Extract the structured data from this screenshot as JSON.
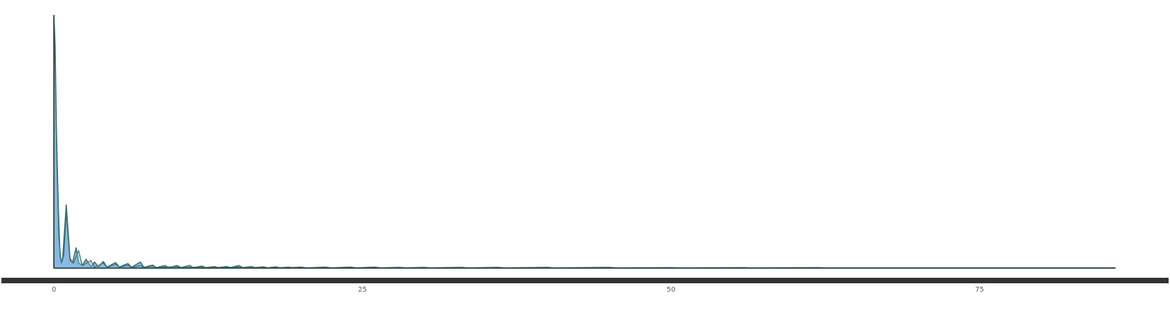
{
  "chart_data": {
    "type": "area",
    "title": "",
    "xlabel": "",
    "ylabel": "",
    "xlim": [
      0,
      90
    ],
    "ylim": [
      0,
      1
    ],
    "grid": false,
    "x_ticks": [
      0,
      25,
      50,
      75
    ],
    "x_tick_labels": [
      "0",
      "25",
      "50",
      "75"
    ],
    "colors": {
      "fill": "#7fb2de",
      "line": "#3a6e6a",
      "axis": "#2f3d3d",
      "scrollbar": "#333333"
    },
    "series": [
      {
        "x": [
          0,
          0.1,
          0.2,
          0.35,
          0.5,
          0.7,
          1.0,
          1.3,
          1.5,
          1.8,
          2.0,
          2.3,
          2.6,
          3.0,
          3.3,
          3.6,
          4.0,
          4.3,
          5.0,
          5.3,
          6.0,
          6.3,
          7.0,
          7.3,
          8.0,
          8.3,
          9.0,
          9.3,
          10.0,
          10.3,
          11.0,
          11.3,
          12.0,
          12.3,
          13.0,
          13.3,
          14.0,
          14.3,
          15.0,
          15.3,
          16.0,
          16.3,
          17.0,
          17.3,
          18.0,
          18.3,
          19.0,
          19.3,
          20.0,
          20.5,
          22.0,
          22.5,
          24.0,
          24.5,
          26.0,
          26.5,
          28.0,
          28.5,
          30.0,
          30.5,
          33.0,
          33.5,
          36.0,
          36.5,
          40.0,
          40.5,
          45.0,
          45.5,
          50.0,
          50.5,
          56.0,
          56.5,
          62.0,
          62.5,
          86.0
        ],
        "y": [
          1.0,
          0.88,
          0.55,
          0.25,
          0.04,
          0.03,
          0.25,
          0.04,
          0.02,
          0.08,
          0.02,
          0.01,
          0.035,
          0.005,
          0.024,
          0.004,
          0.026,
          0.004,
          0.022,
          0.004,
          0.018,
          0.003,
          0.024,
          0.003,
          0.012,
          0.002,
          0.01,
          0.002,
          0.01,
          0.002,
          0.01,
          0.002,
          0.008,
          0.002,
          0.006,
          0.002,
          0.006,
          0.002,
          0.01,
          0.002,
          0.006,
          0.002,
          0.005,
          0.001,
          0.005,
          0.001,
          0.004,
          0.001,
          0.004,
          0.001,
          0.004,
          0.001,
          0.004,
          0.001,
          0.004,
          0.001,
          0.003,
          0.001,
          0.003,
          0.001,
          0.003,
          0.001,
          0.003,
          0.001,
          0.003,
          0.001,
          0.003,
          0.001,
          0.002,
          0.001,
          0.002,
          0.001,
          0.002,
          0.001,
          0.001
        ]
      },
      {
        "x": [
          0,
          0.1,
          0.25,
          0.4,
          0.6,
          0.8,
          1.0,
          1.3,
          1.6,
          2.0,
          2.3,
          3.0,
          3.3,
          4.0,
          4.3,
          5.0,
          5.3,
          6.0,
          6.3,
          7.0,
          7.3,
          8.0,
          8.3,
          10.0,
          10.3,
          12.0,
          12.3,
          15.0,
          15.3,
          20.0,
          20.3,
          86.0
        ],
        "y": [
          0.98,
          0.8,
          0.4,
          0.12,
          0.02,
          0.05,
          0.22,
          0.03,
          0.02,
          0.07,
          0.01,
          0.03,
          0.004,
          0.02,
          0.003,
          0.015,
          0.003,
          0.012,
          0.002,
          0.01,
          0.002,
          0.008,
          0.002,
          0.006,
          0.001,
          0.005,
          0.001,
          0.004,
          0.001,
          0.003,
          0.001,
          0.001
        ]
      }
    ]
  }
}
